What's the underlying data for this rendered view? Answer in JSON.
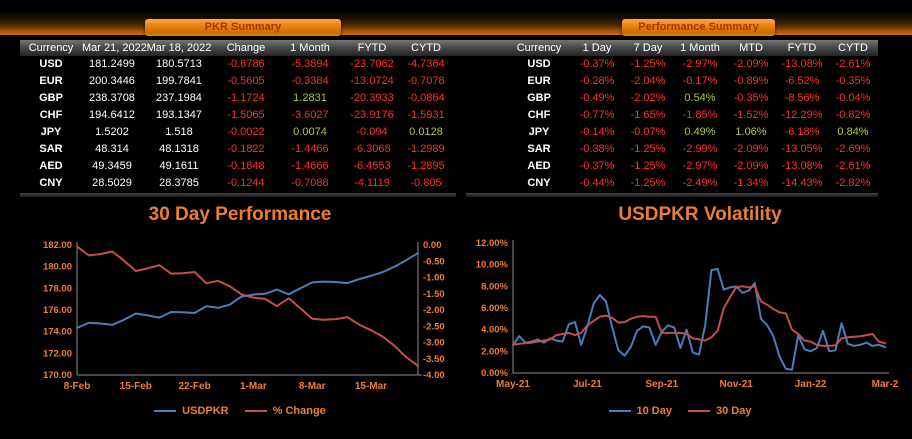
{
  "colors": {
    "accent_orange": "#ED7D31",
    "negative": "#ff2e2e",
    "positive": "#a6cb3d",
    "plain_value": "#ffffff",
    "line_blue": "#4a7ebb",
    "line_red": "#c0504d"
  },
  "tables": {
    "pkr": {
      "tab_label": "PKR Summary",
      "headers": [
        "Currency",
        "Mar 21, 2022",
        "Mar 18, 2022",
        "Change",
        "1 Month",
        "FYTD",
        "CYTD"
      ],
      "plain_value_columns": [
        1,
        2
      ],
      "rows": [
        [
          "USD",
          "181.2499",
          "180.5713",
          "-0.6786",
          "-5.3894",
          "-23.7062",
          "-4.7364"
        ],
        [
          "EUR",
          "200.3446",
          "199.7841",
          "-0.5605",
          "-0.3384",
          "-13.0724",
          "-0.7078"
        ],
        [
          "GBP",
          "238.3708",
          "237.1984",
          "-1.1724",
          "1.2831",
          "-20.3933",
          "-0.0864"
        ],
        [
          "CHF",
          "194.6412",
          "193.1347",
          "-1.5065",
          "-3.6027",
          "-23.9176",
          "-1.5931"
        ],
        [
          "JPY",
          "1.5202",
          "1.518",
          "-0.0022",
          "0.0074",
          "-0.094",
          "0.0128"
        ],
        [
          "SAR",
          "48.314",
          "48.1318",
          "-0.1822",
          "-1.4466",
          "-6.3068",
          "-1.2989"
        ],
        [
          "AED",
          "49.3459",
          "49.1611",
          "-0.1848",
          "-1.4666",
          "-6.4553",
          "-1.2895"
        ],
        [
          "CNY",
          "28.5029",
          "28.3785",
          "-0.1244",
          "-0.7088",
          "-4.1119",
          "-0.805"
        ]
      ]
    },
    "performance": {
      "tab_label": "Performance Summary",
      "headers": [
        "Currency",
        "1 Day",
        "7 Day",
        "1 Month",
        "MTD",
        "FYTD",
        "CYTD"
      ],
      "plain_value_columns": [],
      "rows": [
        [
          "USD",
          "-0.37%",
          "-1.25%",
          "-2.97%",
          "-2.09%",
          "-13.08%",
          "-2.61%"
        ],
        [
          "EUR",
          "-0.28%",
          "-2.04%",
          "-0.17%",
          "-0.89%",
          "-6.52%",
          "-0.35%"
        ],
        [
          "GBP",
          "-0.49%",
          "-2.02%",
          "0.54%",
          "-0.35%",
          "-8.56%",
          "-0.04%"
        ],
        [
          "CHF",
          "-0.77%",
          "-1.65%",
          "-1.85%",
          "-1.52%",
          "-12.29%",
          "-0.82%"
        ],
        [
          "JPY",
          "-0.14%",
          "-0.07%",
          "0.49%",
          "1.06%",
          "-6.18%",
          "0.84%"
        ],
        [
          "SAR",
          "-0.38%",
          "-1.25%",
          "-2.99%",
          "-2.09%",
          "-13.05%",
          "-2.69%"
        ],
        [
          "AED",
          "-0.37%",
          "-1.25%",
          "-2.97%",
          "-2.09%",
          "-13.08%",
          "-2.61%"
        ],
        [
          "CNY",
          "-0.44%",
          "-1.25%",
          "-2.49%",
          "-1.34%",
          "-14.43%",
          "-2.82%"
        ]
      ]
    }
  },
  "chart_data": [
    {
      "type": "line",
      "title": "30 Day Performance",
      "grid": false,
      "legend_position": "bottom",
      "x_tick_labels": [
        "8-Feb",
        "15-Feb",
        "22-Feb",
        "1-Mar",
        "8-Mar",
        "15-Mar"
      ],
      "x_tick_indices": [
        0,
        5,
        10,
        15,
        20,
        25
      ],
      "axes": [
        {
          "side": "left",
          "min": 170,
          "max": 182,
          "step": 2,
          "suffix": ""
        },
        {
          "side": "right",
          "min": -4,
          "max": 0,
          "step": 0.5,
          "suffix": ""
        }
      ],
      "series": [
        {
          "name": "USDPKR",
          "axis": 0,
          "color": "#4a7ebb",
          "values": [
            174.35,
            174.82,
            174.75,
            174.62,
            175.1,
            175.68,
            175.5,
            175.3,
            175.82,
            175.8,
            175.72,
            176.35,
            176.2,
            176.5,
            177.25,
            177.42,
            177.5,
            177.88,
            177.45,
            178.0,
            178.55,
            178.62,
            178.58,
            178.48,
            178.85,
            179.15,
            179.5,
            180.0,
            180.6,
            181.25
          ]
        },
        {
          "name": "% Change",
          "axis": 1,
          "color": "#c0504d",
          "values": [
            -0.05,
            -0.32,
            -0.28,
            -0.2,
            -0.48,
            -0.8,
            -0.72,
            -0.62,
            -0.88,
            -0.87,
            -0.83,
            -1.18,
            -1.1,
            -1.27,
            -1.52,
            -1.62,
            -1.66,
            -1.88,
            -1.64,
            -1.95,
            -2.27,
            -2.3,
            -2.28,
            -2.22,
            -2.45,
            -2.62,
            -2.82,
            -3.1,
            -3.45,
            -3.72
          ]
        }
      ]
    },
    {
      "type": "line",
      "title": "USDPKR Volatility",
      "grid": false,
      "legend_position": "bottom",
      "x_tick_labels": [
        "May-21",
        "Jul-21",
        "Sep-21",
        "Nov-21",
        "Jan-22",
        "Mar-2"
      ],
      "x_tick_indices": [
        0,
        12,
        24,
        36,
        48,
        60
      ],
      "axes": [
        {
          "side": "left",
          "min": 0,
          "max": 12,
          "step": 2,
          "suffix": "%"
        }
      ],
      "series": [
        {
          "name": "10 Day",
          "axis": 0,
          "color": "#4a7ebb",
          "values": [
            2.6,
            3.4,
            2.8,
            2.9,
            3.1,
            2.8,
            3.2,
            3.0,
            2.9,
            4.5,
            4.7,
            2.6,
            4.3,
            6.4,
            7.2,
            6.6,
            4.2,
            2.1,
            1.6,
            2.4,
            3.9,
            4.3,
            4.2,
            2.6,
            3.8,
            4.4,
            4.2,
            2.3,
            4.0,
            1.9,
            1.7,
            4.4,
            9.5,
            9.6,
            7.7,
            7.9,
            8.0,
            7.4,
            7.6,
            8.3,
            5.0,
            4.4,
            3.4,
            1.5,
            0.4,
            0.3,
            3.5,
            2.2,
            2.0,
            2.3,
            3.9,
            2.0,
            2.1,
            4.6,
            2.7,
            2.5,
            2.6,
            2.8,
            2.5,
            2.6,
            2.4
          ]
        },
        {
          "name": "30 Day",
          "axis": 0,
          "color": "#c0504d",
          "values": [
            2.6,
            2.7,
            2.75,
            2.8,
            2.9,
            3.0,
            3.1,
            3.5,
            3.6,
            3.7,
            3.5,
            3.7,
            4.4,
            4.8,
            5.2,
            5.3,
            5.1,
            4.65,
            4.7,
            5.0,
            5.2,
            5.25,
            5.2,
            5.2,
            3.7,
            3.7,
            3.7,
            3.7,
            3.6,
            3.2,
            3.1,
            3.0,
            3.3,
            3.9,
            6.0,
            7.0,
            7.9,
            8.0,
            7.9,
            8.0,
            6.6,
            6.3,
            5.9,
            5.6,
            5.5,
            4.0,
            3.6,
            3.0,
            2.9,
            2.6,
            2.5,
            2.5,
            2.55,
            3.2,
            3.3,
            3.35,
            3.4,
            3.5,
            3.6,
            2.9,
            2.75
          ]
        }
      ]
    }
  ]
}
